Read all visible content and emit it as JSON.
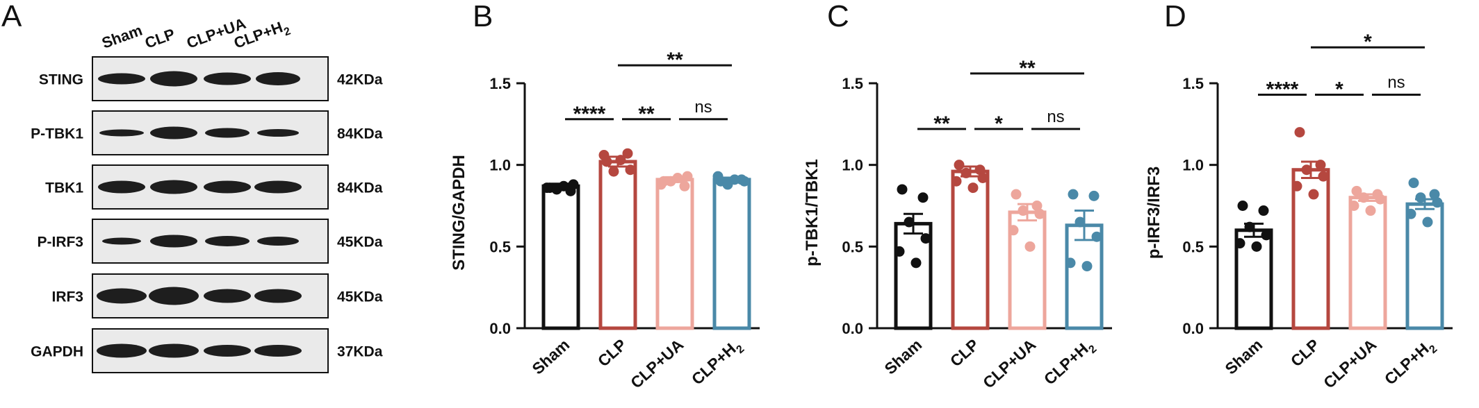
{
  "panelA": {
    "letter": "A",
    "lanes": [
      "Sham",
      "CLP",
      "CLP+UA",
      "CLP+H2"
    ],
    "blots": [
      {
        "protein": "STING",
        "mw": "42KDa"
      },
      {
        "protein": "P-TBK1",
        "mw": "84KDa"
      },
      {
        "protein": "TBK1",
        "mw": "84KDa"
      },
      {
        "protein": "P-IRF3",
        "mw": "45KDa"
      },
      {
        "protein": "IRF3",
        "mw": "45KDa"
      },
      {
        "protein": "GAPDH",
        "mw": "37KDa"
      }
    ]
  },
  "chart_data": [
    {
      "type": "bar",
      "panel": "B",
      "ylabel": "STING/GAPDH",
      "ylim": [
        0,
        1.5
      ],
      "yticks": [
        "0.0",
        "0.5",
        "1.0",
        "1.5"
      ],
      "categories": [
        "Sham",
        "CLP",
        "CLP+UA",
        "CLP+H2"
      ],
      "colors": [
        "#111111",
        "#b5473f",
        "#eda69c",
        "#4a89a8"
      ],
      "values": [
        0.87,
        1.02,
        0.91,
        0.91
      ],
      "sem": [
        0.015,
        0.03,
        0.015,
        0.012
      ],
      "points": [
        [
          0.86,
          0.84,
          0.85,
          0.88,
          0.86,
          0.87
        ],
        [
          1.02,
          1.07,
          0.96,
          0.97,
          1.06,
          1.03
        ],
        [
          0.9,
          0.87,
          0.9,
          0.93,
          0.88,
          0.92
        ],
        [
          0.9,
          0.91,
          0.88,
          0.9,
          0.93,
          0.91
        ]
      ],
      "comparisons": [
        {
          "from": 0,
          "to": 1,
          "label": "****",
          "y": 1.28
        },
        {
          "from": 1,
          "to": 2,
          "label": "**",
          "y": 1.28
        },
        {
          "from": 2,
          "to": 3,
          "label": "ns",
          "y": 1.28
        },
        {
          "from": 1,
          "to": 3,
          "label": "**",
          "y": 1.61
        }
      ]
    },
    {
      "type": "bar",
      "panel": "C",
      "ylabel": "p-TBK1/TBK1",
      "ylim": [
        0,
        1.5
      ],
      "yticks": [
        "0.0",
        "0.5",
        "1.0",
        "1.5"
      ],
      "categories": [
        "Sham",
        "CLP",
        "CLP+UA",
        "CLP+H2"
      ],
      "colors": [
        "#111111",
        "#b5473f",
        "#eda69c",
        "#4a89a8"
      ],
      "values": [
        0.64,
        0.96,
        0.71,
        0.63
      ],
      "sem": [
        0.06,
        0.03,
        0.05,
        0.09
      ],
      "points": [
        [
          0.85,
          0.8,
          0.65,
          0.55,
          0.47,
          0.4
        ],
        [
          1.0,
          0.97,
          0.95,
          0.92,
          0.9,
          0.86
        ],
        [
          0.82,
          0.75,
          0.72,
          0.7,
          0.6,
          0.5
        ],
        [
          0.82,
          0.81,
          0.65,
          0.56,
          0.4,
          0.38
        ]
      ],
      "comparisons": [
        {
          "from": 0,
          "to": 1,
          "label": "**",
          "y": 1.22
        },
        {
          "from": 1,
          "to": 2,
          "label": "*",
          "y": 1.22
        },
        {
          "from": 2,
          "to": 3,
          "label": "ns",
          "y": 1.22
        },
        {
          "from": 1,
          "to": 3,
          "label": "**",
          "y": 1.56
        }
      ]
    },
    {
      "type": "bar",
      "panel": "D",
      "ylabel": "p-IRF3/IRF3",
      "ylim": [
        0,
        1.5
      ],
      "yticks": [
        "0.0",
        "0.5",
        "1.0",
        "1.5"
      ],
      "categories": [
        "Sham",
        "CLP",
        "CLP+UA",
        "CLP+H2"
      ],
      "colors": [
        "#111111",
        "#b5473f",
        "#eda69c",
        "#4a89a8"
      ],
      "values": [
        0.6,
        0.97,
        0.8,
        0.76
      ],
      "sem": [
        0.04,
        0.05,
        0.02,
        0.03
      ],
      "points": [
        [
          0.75,
          0.72,
          0.62,
          0.57,
          0.52,
          0.5
        ],
        [
          1.2,
          1.0,
          0.97,
          0.93,
          0.87,
          0.82
        ],
        [
          0.84,
          0.82,
          0.8,
          0.79,
          0.75,
          0.72
        ],
        [
          0.89,
          0.82,
          0.8,
          0.77,
          0.7,
          0.65
        ]
      ],
      "comparisons": [
        {
          "from": 0,
          "to": 1,
          "label": "****",
          "y": 1.43
        },
        {
          "from": 1,
          "to": 2,
          "label": "*",
          "y": 1.43
        },
        {
          "from": 2,
          "to": 3,
          "label": "ns",
          "y": 1.43
        },
        {
          "from": 1,
          "to": 3,
          "label": "*",
          "y": 1.72
        }
      ]
    }
  ]
}
